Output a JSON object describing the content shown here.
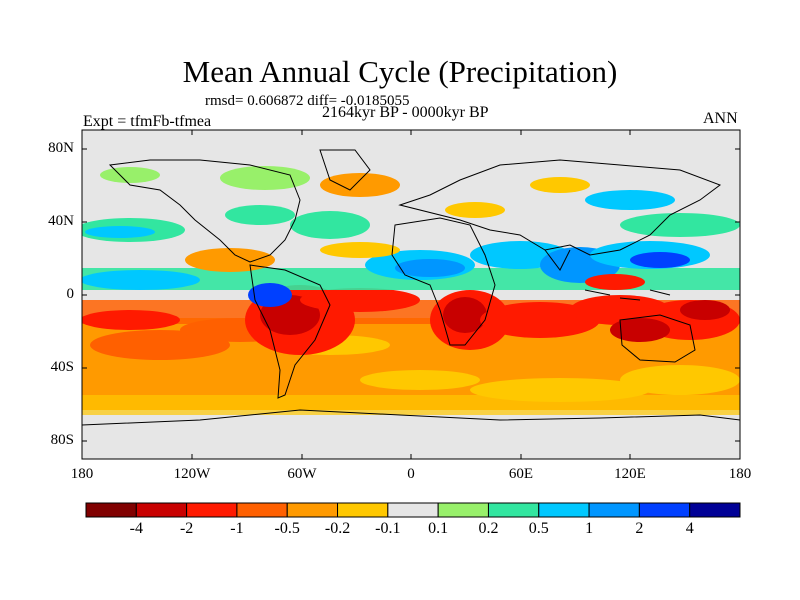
{
  "title": "Mean Annual Cycle (Precipitation)",
  "stats": "rmsd= 0.606872 diff= -0.0185055",
  "period": "2164kyr BP - 0000kyr BP",
  "experiment": "Expt = tfmFb-tfmea",
  "season": "ANN",
  "lat_labels": [
    "80N",
    "40N",
    "0",
    "40S",
    "80S"
  ],
  "lon_labels": [
    "180",
    "120W",
    "60W",
    "0",
    "60E",
    "120E",
    "180"
  ],
  "colorbar": {
    "labels": [
      "-4",
      "-2",
      "-1",
      "-0.5",
      "-0.2",
      "-0.1",
      "0.1",
      "0.2",
      "0.5",
      "1",
      "2",
      "4"
    ],
    "colors": [
      "#800000",
      "#c80000",
      "#ff1a00",
      "#ff6000",
      "#ff9a00",
      "#ffc800",
      "#e6e6e6",
      "#98f06a",
      "#32e6a0",
      "#00c8ff",
      "#0096ff",
      "#0040ff",
      "#000096"
    ]
  }
}
